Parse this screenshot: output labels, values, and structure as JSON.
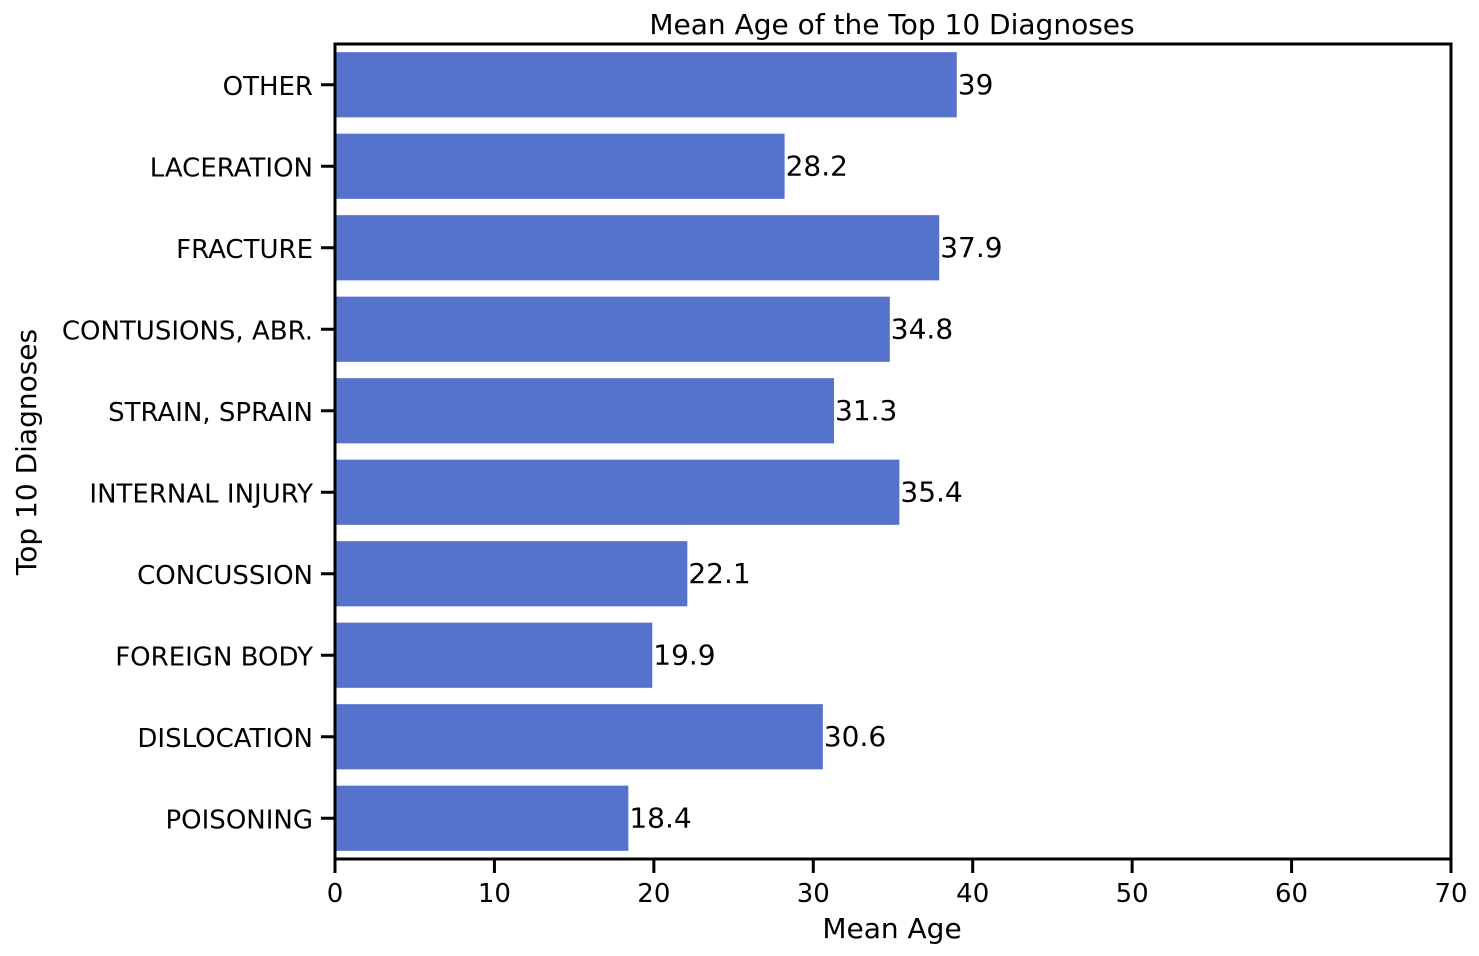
{
  "chart_data": {
    "type": "bar",
    "orientation": "horizontal",
    "title": "Mean Age of the Top 10 Diagnoses",
    "xlabel": "Mean Age",
    "ylabel": "Top 10 Diagnoses",
    "categories": [
      "OTHER",
      "LACERATION",
      "FRACTURE",
      "CONTUSIONS, ABR.",
      "STRAIN, SPRAIN",
      "INTERNAL INJURY",
      "CONCUSSION",
      "FOREIGN BODY",
      "DISLOCATION",
      "POISONING"
    ],
    "values": [
      39,
      28.2,
      37.9,
      34.8,
      31.3,
      35.4,
      22.1,
      19.9,
      30.6,
      18.4
    ],
    "data_labels": [
      "39",
      "28.2",
      "37.9",
      "34.8",
      "31.3",
      "35.4",
      "22.1",
      "19.9",
      "30.6",
      "18.4"
    ],
    "xlim": [
      0,
      70
    ],
    "xticks": [
      0,
      10,
      20,
      30,
      40,
      50,
      60,
      70
    ],
    "xtick_labels": [
      "0",
      "10",
      "20",
      "30",
      "40",
      "50",
      "60",
      "70"
    ],
    "grid": false,
    "bar_color": "#5573cd"
  }
}
